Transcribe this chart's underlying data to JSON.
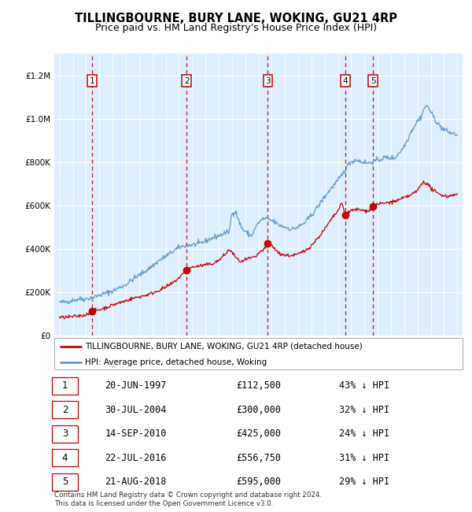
{
  "title": "TILLINGBOURNE, BURY LANE, WOKING, GU21 4RP",
  "subtitle": "Price paid vs. HM Land Registry's House Price Index (HPI)",
  "title_fontsize": 10.5,
  "subtitle_fontsize": 9,
  "background_color": "#ffffff",
  "plot_bg_color": "#ddeeff",
  "ylim": [
    0,
    1300000
  ],
  "yticks": [
    0,
    200000,
    400000,
    600000,
    800000,
    1000000,
    1200000
  ],
  "xlim_start": 1994.6,
  "xlim_end": 2025.4,
  "xticks": [
    1995,
    1996,
    1997,
    1998,
    1999,
    2000,
    2001,
    2002,
    2003,
    2004,
    2005,
    2006,
    2007,
    2008,
    2009,
    2010,
    2011,
    2012,
    2013,
    2014,
    2015,
    2016,
    2017,
    2018,
    2019,
    2020,
    2021,
    2022,
    2023,
    2024,
    2025
  ],
  "sale_points": [
    {
      "label": "1",
      "year": 1997.47,
      "price": 112500
    },
    {
      "label": "2",
      "year": 2004.58,
      "price": 300000
    },
    {
      "label": "3",
      "year": 2010.71,
      "price": 425000
    },
    {
      "label": "4",
      "year": 2016.55,
      "price": 556750
    },
    {
      "label": "5",
      "year": 2018.64,
      "price": 595000
    }
  ],
  "red_line_color": "#cc0000",
  "blue_line_color": "#6699cc",
  "grid_color": "#ffffff",
  "dashed_color": "#cc0000",
  "legend_label_red": "TILLINGBOURNE, BURY LANE, WOKING, GU21 4RP (detached house)",
  "legend_label_blue": "HPI: Average price, detached house, Woking",
  "footer": "Contains HM Land Registry data © Crown copyright and database right 2024.\nThis data is licensed under the Open Government Licence v3.0.",
  "table_rows": [
    [
      "1",
      "20-JUN-1997",
      "£112,500",
      "43% ↓ HPI"
    ],
    [
      "2",
      "30-JUL-2004",
      "£300,000",
      "32% ↓ HPI"
    ],
    [
      "3",
      "14-SEP-2010",
      "£425,000",
      "24% ↓ HPI"
    ],
    [
      "4",
      "22-JUL-2016",
      "£556,750",
      "31% ↓ HPI"
    ],
    [
      "5",
      "21-AUG-2018",
      "£595,000",
      "29% ↓ HPI"
    ]
  ]
}
